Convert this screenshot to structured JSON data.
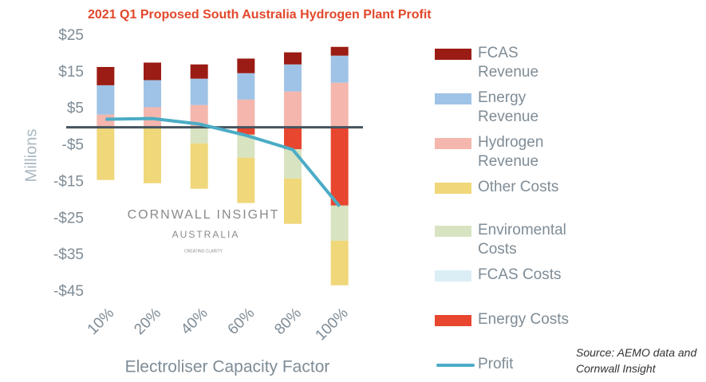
{
  "chart_data": {
    "type": "stacked-bar-line",
    "title": "2021 Q1 Proposed South Australia Hydrogen Plant Profit",
    "x_label": "Electroliser Capacity Factor",
    "y_label": "Millions",
    "categories": [
      "10%",
      "20%",
      "40%",
      "60%",
      "80%",
      "100%"
    ],
    "ylim": [
      -45,
      25
    ],
    "yticks": [
      {
        "value": -45,
        "label": "-$45"
      },
      {
        "value": -35,
        "label": "-$35"
      },
      {
        "value": -25,
        "label": "-$25"
      },
      {
        "value": -15,
        "label": "-$15"
      },
      {
        "value": -5,
        "label": "-$5"
      },
      {
        "value": 5,
        "label": "$5"
      },
      {
        "value": 15,
        "label": "$15"
      },
      {
        "value": 25,
        "label": "$25"
      }
    ],
    "series": [
      {
        "name": "FCAS Revenue",
        "color": "#9b1c14",
        "values": [
          5,
          4.8,
          3.9,
          4,
          3.3,
          2.4
        ]
      },
      {
        "name": "Energy Revenue",
        "color": "#9fc3e6",
        "values": [
          8,
          7.4,
          7.2,
          7.2,
          7.4,
          7.4
        ]
      },
      {
        "name": "Hydrogen Revenue",
        "color": "#f4b6ad",
        "values": [
          3.5,
          5.5,
          6.1,
          7.6,
          9.8,
          12.2
        ]
      },
      {
        "name": "Other Costs",
        "color": "#efd77a",
        "values": [
          -14.4,
          -15.3,
          -12.4,
          -12.4,
          -12.4,
          -12.2
        ]
      },
      {
        "name": "Enviromental Costs",
        "color": "#d8e3c1",
        "values": [
          0,
          0,
          -4.4,
          -6.3,
          -8,
          -9.6
        ]
      },
      {
        "name": "FCAS Costs",
        "color": "#dbeef5",
        "values": [
          0,
          0,
          0,
          0,
          0,
          0
        ]
      },
      {
        "name": "Energy Costs",
        "color": "#e8462f",
        "values": [
          0,
          0,
          0,
          -2,
          -6,
          -21.4
        ]
      },
      {
        "name": "Profit",
        "color": "#4bacc6",
        "kind": "line",
        "values": [
          2.2,
          2.4,
          0.9,
          -2.2,
          -6.1,
          -21.6
        ]
      }
    ],
    "watermark": {
      "name": "CORNWALL INSIGHT",
      "region": "AUSTRALIA",
      "tagline": "CREATING CLARITY"
    },
    "source": "Source: AEMO data and Cornwall Insight"
  }
}
